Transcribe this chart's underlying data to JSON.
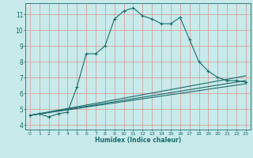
{
  "xlabel": "Humidex (Indice chaleur)",
  "ylabel": "",
  "bg_color": "#c8eaea",
  "grid_color": "#d4a0a0",
  "line_color": "#1a6b6b",
  "x_ticks": [
    0,
    1,
    2,
    3,
    4,
    5,
    6,
    7,
    8,
    9,
    10,
    11,
    12,
    13,
    14,
    15,
    16,
    17,
    18,
    19,
    20,
    21,
    22,
    23
  ],
  "y_ticks": [
    4,
    5,
    6,
    7,
    8,
    9,
    10,
    11
  ],
  "xlim": [
    -0.5,
    23.5
  ],
  "ylim": [
    3.7,
    11.7
  ],
  "line1_x": [
    0,
    1,
    2,
    3,
    4,
    5,
    6,
    7,
    8,
    9,
    10,
    11,
    12,
    13,
    14,
    15,
    16,
    17,
    18,
    19,
    20,
    21,
    22,
    23
  ],
  "line1_y": [
    4.6,
    4.7,
    4.5,
    4.7,
    4.8,
    6.4,
    8.5,
    8.5,
    9.0,
    10.7,
    11.2,
    11.4,
    10.9,
    10.7,
    10.4,
    10.4,
    10.8,
    9.4,
    8.0,
    7.4,
    7.0,
    6.8,
    6.8,
    6.7
  ],
  "line2_x": [
    0,
    23
  ],
  "line2_y": [
    4.6,
    6.6
  ],
  "line3_x": [
    0,
    23
  ],
  "line3_y": [
    4.6,
    6.8
  ],
  "line4_x": [
    0,
    23
  ],
  "line4_y": [
    4.6,
    7.1
  ]
}
